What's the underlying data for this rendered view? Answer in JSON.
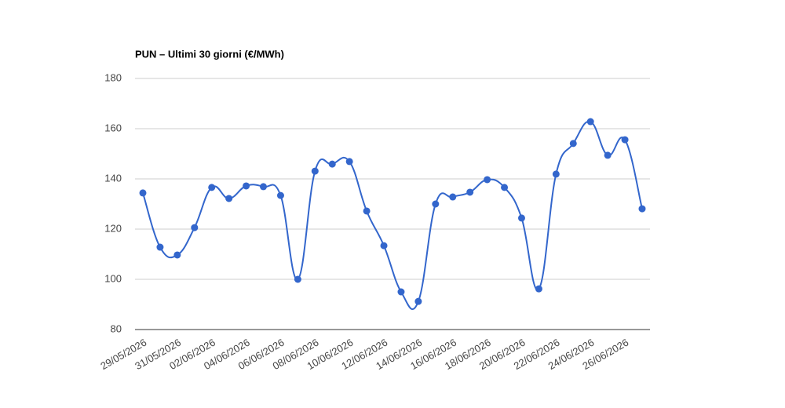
{
  "chart_data": {
    "type": "line",
    "title": "PUN – Ultimi 30 giorni (€/MWh)",
    "categories": [
      "29/05/2026",
      null,
      "31/05/2026",
      null,
      "02/06/2026",
      null,
      "04/06/2026",
      null,
      "06/06/2026",
      null,
      "08/06/2026",
      null,
      "10/06/2026",
      null,
      "12/06/2026",
      null,
      "14/06/2026",
      null,
      "16/06/2026",
      null,
      "18/06/2026",
      null,
      "20/06/2026",
      null,
      "22/06/2026",
      null,
      "24/06/2026",
      null,
      "26/06/2026",
      null
    ],
    "series": [
      {
        "name": "PUN",
        "color": "#3366cc",
        "values": [
          134.4,
          112.8,
          109.7,
          120.6,
          136.6,
          132.2,
          137.2,
          136.9,
          133.4,
          100,
          143.1,
          145.9,
          146.9,
          127.2,
          113.4,
          95,
          91.2,
          130,
          132.8,
          134.7,
          139.7,
          136.6,
          124.4,
          96.2,
          141.9,
          154.1,
          162.8,
          149.4,
          155.6,
          128.1
        ]
      }
    ],
    "ylim": [
      80,
      180
    ],
    "yticks": [
      80,
      100,
      120,
      140,
      160,
      180
    ],
    "grid": true
  }
}
